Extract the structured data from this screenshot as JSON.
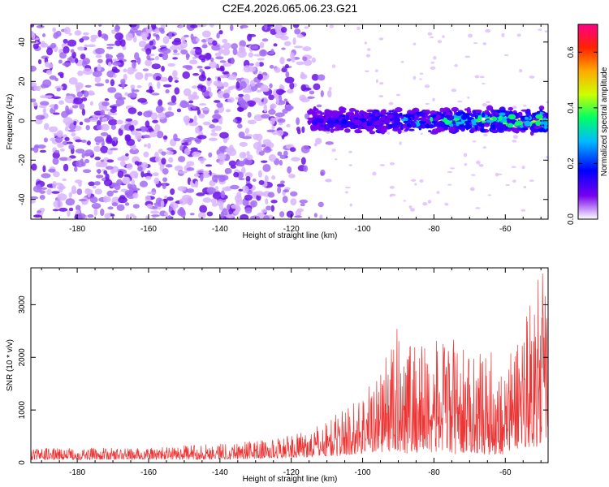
{
  "title": "C2E4.2026.065.06.23.G21",
  "colors": {
    "snr_line": "#ee3333",
    "blob_faint": "#d8b4ff",
    "blob_mid": "#a36bf5",
    "blob_strong": "#6a12e6"
  },
  "chart_data": [
    {
      "type": "heatmap",
      "xlabel": "Height of straight line (km)",
      "ylabel": "Frequency (Hz)",
      "xlim": [
        -193,
        -48
      ],
      "ylim": [
        -50,
        49
      ],
      "x_ticks": [
        -180,
        -160,
        -140,
        -120,
        -100,
        -80,
        -60
      ],
      "y_ticks": [
        -40,
        -20,
        0,
        20,
        40
      ],
      "x_tick_labels": [
        "-180",
        "-160",
        "-140",
        "-120",
        "-100",
        "-80",
        "-60"
      ],
      "y_tick_labels": [
        "-40",
        "-20",
        "0",
        "20",
        "40"
      ],
      "signal_band": {
        "x_start": -115,
        "x_end": -48,
        "center_hz": 0,
        "half_width_hz": 6
      },
      "colorbar": {
        "label": "Normalized spectral amplitude",
        "range": [
          0.0,
          0.7
        ],
        "ticks": [
          0.0,
          0.2,
          0.4,
          0.6
        ],
        "tick_labels": [
          "0.0",
          "0.2",
          "0.4",
          "0.6"
        ]
      }
    },
    {
      "type": "line",
      "xlabel": "Height of straight line (km)",
      "ylabel": "SNR (10 * v/v)",
      "xlim": [
        -193,
        -48
      ],
      "ylim": [
        0,
        3700
      ],
      "x_ticks": [
        -180,
        -160,
        -140,
        -120,
        -100,
        -80,
        -60
      ],
      "y_ticks": [
        0,
        1000,
        2000,
        3000
      ],
      "x_tick_labels": [
        "-180",
        "-160",
        "-140",
        "-120",
        "-100",
        "-80",
        "-60"
      ],
      "y_tick_labels": [
        "0",
        "1000",
        "2000",
        "3000"
      ],
      "envelope": {
        "x": [
          -193,
          -160,
          -140,
          -125,
          -115,
          -108,
          -102,
          -95,
          -90,
          -85,
          -80,
          -75,
          -70,
          -65,
          -60,
          -55,
          -50,
          -48
        ],
        "y_min": [
          50,
          60,
          60,
          80,
          100,
          120,
          150,
          200,
          200,
          150,
          200,
          150,
          200,
          150,
          150,
          300,
          300,
          500
        ],
        "y_max": [
          280,
          280,
          380,
          450,
          600,
          900,
          1200,
          1800,
          2600,
          2400,
          2300,
          2400,
          2000,
          2200,
          1800,
          2900,
          3600,
          3600
        ]
      }
    }
  ]
}
